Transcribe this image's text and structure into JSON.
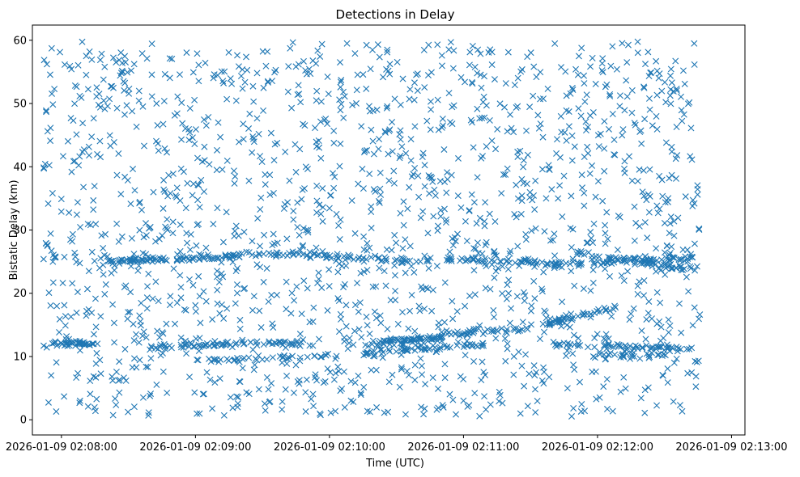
{
  "chart_data": {
    "type": "scatter",
    "title": "Detections in Delay",
    "xlabel": "Time (UTC)",
    "ylabel": "Bistatic Delay (km)",
    "marker": "x",
    "color": "#1f77b4",
    "grid": false,
    "legend": "none",
    "x_range": [
      "2026-01-09 02:07:47",
      "2026-01-09 02:13:06"
    ],
    "ylim": [
      -2.4,
      62.4
    ],
    "x_tick_labels": [
      "2026-01-09 02:08:00",
      "2026-01-09 02:09:00",
      "2026-01-09 02:10:00",
      "2026-01-09 02:11:00",
      "2026-01-09 02:12:00",
      "2026-01-09 02:13:00"
    ],
    "y_tick_labels": [
      "0",
      "10",
      "20",
      "30",
      "40",
      "50",
      "60"
    ],
    "series": [
      {
        "x_start": "2026-01-09 02:07:52",
        "x_end": "2026-01-09 02:12:46",
        "clutter_count": 1650,
        "clutter_delay_range": [
          0.5,
          60
        ],
        "tracks": [
          {
            "t_start": "2026-01-09 02:07:55",
            "t_end": "2026-01-09 02:08:15",
            "delay_start": 12.2,
            "delay_end": 12.0,
            "count": 40
          },
          {
            "t_start": "2026-01-09 02:07:52",
            "t_end": "2026-01-09 02:07:58",
            "delay_start": 28.5,
            "delay_end": 25.5,
            "count": 8
          },
          {
            "t_start": "2026-01-09 02:08:20",
            "t_end": "2026-01-09 02:09:20",
            "delay_start": 25.0,
            "delay_end": 25.8,
            "count": 90
          },
          {
            "t_start": "2026-01-09 02:08:40",
            "t_end": "2026-01-09 02:09:20",
            "delay_start": 11.5,
            "delay_end": 12.0,
            "count": 45
          },
          {
            "t_start": "2026-01-09 02:09:20",
            "t_end": "2026-01-09 02:10:00",
            "delay_start": 26.4,
            "delay_end": 26.0,
            "count": 35
          },
          {
            "t_start": "2026-01-09 02:09:20",
            "t_end": "2026-01-09 02:09:55",
            "delay_start": 12.3,
            "delay_end": 12.0,
            "count": 30
          },
          {
            "t_start": "2026-01-09 02:09:00",
            "t_end": "2026-01-09 02:10:05",
            "delay_start": 9.3,
            "delay_end": 10.2,
            "count": 40
          },
          {
            "t_start": "2026-01-09 02:10:00",
            "t_end": "2026-01-09 02:10:45",
            "delay_start": 25.9,
            "delay_end": 24.9,
            "count": 40
          },
          {
            "t_start": "2026-01-09 02:10:15",
            "t_end": "2026-01-09 02:11:05",
            "delay_start": 11.8,
            "delay_end": 13.8,
            "count": 60
          },
          {
            "t_start": "2026-01-09 02:10:15",
            "t_end": "2026-01-09 02:11:10",
            "delay_start": 10.5,
            "delay_end": 12.0,
            "count": 55
          },
          {
            "t_start": "2026-01-09 02:10:20",
            "t_end": "2026-01-09 02:10:50",
            "delay_start": 12.4,
            "delay_end": 12.8,
            "count": 25
          },
          {
            "t_start": "2026-01-09 02:10:50",
            "t_end": "2026-01-09 02:11:35",
            "delay_start": 25.6,
            "delay_end": 24.8,
            "count": 45
          },
          {
            "t_start": "2026-01-09 02:11:00",
            "t_end": "2026-01-09 02:11:30",
            "delay_start": 14.2,
            "delay_end": 14.2,
            "count": 20
          },
          {
            "t_start": "2026-01-09 02:11:35",
            "t_end": "2026-01-09 02:12:45",
            "delay_start": 24.5,
            "delay_end": 25.8,
            "count": 80
          },
          {
            "t_start": "2026-01-09 02:11:35",
            "t_end": "2026-01-09 02:12:10",
            "delay_start": 15.0,
            "delay_end": 18.0,
            "count": 45
          },
          {
            "t_start": "2026-01-09 02:11:50",
            "t_end": "2026-01-09 02:12:45",
            "delay_start": 26.5,
            "delay_end": 23.5,
            "count": 50
          },
          {
            "t_start": "2026-01-09 02:11:40",
            "t_end": "2026-01-09 02:12:45",
            "delay_start": 12.0,
            "delay_end": 11.2,
            "count": 55
          },
          {
            "t_start": "2026-01-09 02:11:55",
            "t_end": "2026-01-09 02:12:30",
            "delay_start": 10.0,
            "delay_end": 10.2,
            "count": 25
          }
        ]
      }
    ]
  }
}
